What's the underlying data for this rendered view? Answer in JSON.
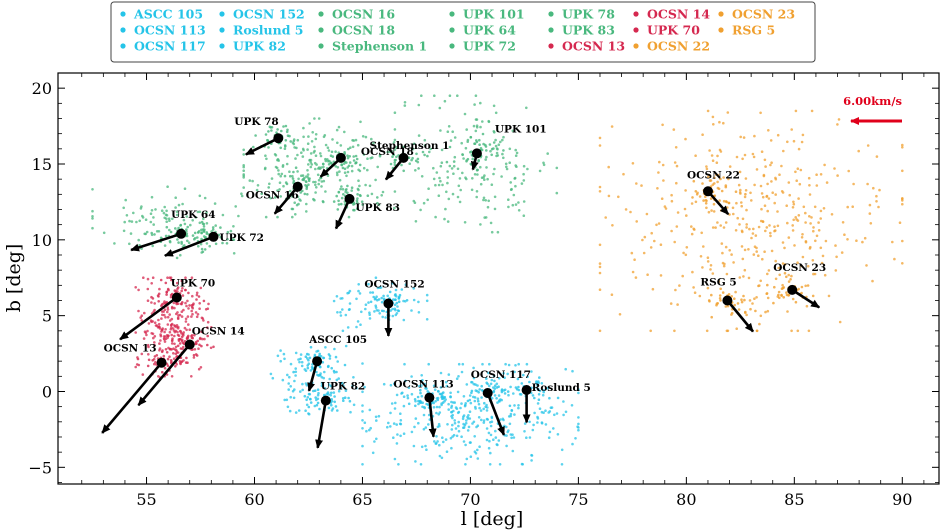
{
  "chart_data": {
    "type": "scatter",
    "xlabel": "l [deg]",
    "ylabel": "b [deg]",
    "xlim": [
      50.9,
      91.7
    ],
    "ylim": [
      -6.1,
      21.0
    ],
    "xticks": [
      "55",
      "60",
      "65",
      "70",
      "75",
      "80",
      "85",
      "90"
    ],
    "yticks": [
      "−5",
      "0",
      "5",
      "10",
      "15",
      "20"
    ],
    "xtick_values": [
      55,
      60,
      65,
      70,
      75,
      80,
      85,
      90
    ],
    "ytick_values": [
      -5,
      0,
      5,
      10,
      15,
      20
    ],
    "grid": false,
    "legend_position": "top-center",
    "scale_arrow_label": "6.00km/s",
    "scale_arrow_color": "#e0001b",
    "groups": [
      {
        "color": "#25c4e8",
        "clusters": [
          "ASCC 105",
          "OCSN 113",
          "OCSN 117",
          "OCSN 152",
          "Roslund 5",
          "UPK 82"
        ]
      },
      {
        "color": "#49b87e",
        "clusters": [
          "OCSN 16",
          "OCSN 18",
          "Stephenson 1",
          "UPK 101",
          "UPK 64",
          "UPK 72",
          "UPK 78",
          "UPK 83"
        ]
      },
      {
        "color": "#d5284f",
        "clusters": [
          "OCSN 13",
          "OCSN 14",
          "UPK 70"
        ]
      },
      {
        "color": "#f0a030",
        "clusters": [
          "OCSN 22",
          "OCSN 23",
          "RSG 5"
        ]
      }
    ],
    "legend": [
      {
        "name": "ASCC 105",
        "color": "#25c4e8"
      },
      {
        "name": "OCSN 113",
        "color": "#25c4e8"
      },
      {
        "name": "OCSN 117",
        "color": "#25c4e8"
      },
      {
        "name": "OCSN 152",
        "color": "#25c4e8"
      },
      {
        "name": "Roslund 5",
        "color": "#25c4e8"
      },
      {
        "name": "UPK 82",
        "color": "#25c4e8"
      },
      {
        "name": "OCSN 16",
        "color": "#49b87e"
      },
      {
        "name": "OCSN 18",
        "color": "#49b87e"
      },
      {
        "name": "Stephenson 1",
        "color": "#49b87e"
      },
      {
        "name": "UPK 101",
        "color": "#49b87e"
      },
      {
        "name": "UPK 64",
        "color": "#49b87e"
      },
      {
        "name": "UPK 72",
        "color": "#49b87e"
      },
      {
        "name": "UPK 78",
        "color": "#49b87e"
      },
      {
        "name": "UPK 83",
        "color": "#49b87e"
      },
      {
        "name": "OCSN 13",
        "color": "#d5284f"
      },
      {
        "name": "OCSN 14",
        "color": "#d5284f"
      },
      {
        "name": "UPK 70",
        "color": "#d5284f"
      },
      {
        "name": "OCSN 22",
        "color": "#f0a030"
      },
      {
        "name": "OCSN 23",
        "color": "#f0a030"
      },
      {
        "name": "RSG 5",
        "color": "#f0a030"
      }
    ],
    "clusters": [
      {
        "name": "ASCC 105",
        "l": 62.9,
        "b": 2.0,
        "vl": -0.6,
        "vb": -2.2,
        "color": "#25c4e8"
      },
      {
        "name": "UPK 82",
        "l": 63.3,
        "b": -0.6,
        "vl": -0.6,
        "vb": -3.5,
        "color": "#25c4e8"
      },
      {
        "name": "OCSN 152",
        "l": 66.2,
        "b": 5.8,
        "vl": 0.0,
        "vb": -2.4,
        "color": "#25c4e8"
      },
      {
        "name": "OCSN 113",
        "l": 68.1,
        "b": -0.4,
        "vl": 0.3,
        "vb": -2.9,
        "color": "#25c4e8"
      },
      {
        "name": "OCSN 117",
        "l": 70.8,
        "b": -0.1,
        "vl": 1.2,
        "vb": -3.1,
        "color": "#25c4e8"
      },
      {
        "name": "Roslund 5",
        "l": 72.6,
        "b": 0.1,
        "vl": 0.0,
        "vb": -2.4,
        "color": "#25c4e8"
      },
      {
        "name": "UPK 78",
        "l": 61.1,
        "b": 16.7,
        "vl": -2.4,
        "vb": -1.2,
        "color": "#49b87e"
      },
      {
        "name": "OCSN 18",
        "l": 64.0,
        "b": 15.4,
        "vl": -1.5,
        "vb": -1.4,
        "color": "#49b87e"
      },
      {
        "name": "OCSN 16",
        "l": 62.0,
        "b": 13.5,
        "vl": -1.7,
        "vb": -2.0,
        "color": "#49b87e"
      },
      {
        "name": "Stephenson 1",
        "l": 66.9,
        "b": 15.4,
        "vl": -1.3,
        "vb": -1.6,
        "color": "#49b87e"
      },
      {
        "name": "UPK 83",
        "l": 64.4,
        "b": 12.7,
        "vl": -1.0,
        "vb": -2.2,
        "color": "#49b87e"
      },
      {
        "name": "UPK 101",
        "l": 70.3,
        "b": 15.7,
        "vl": -0.3,
        "vb": -1.2,
        "color": "#49b87e"
      },
      {
        "name": "UPK 64",
        "l": 56.6,
        "b": 10.4,
        "vl": -3.7,
        "vb": -1.2,
        "color": "#49b87e"
      },
      {
        "name": "UPK 72",
        "l": 58.1,
        "b": 10.2,
        "vl": -3.6,
        "vb": -1.4,
        "color": "#49b87e"
      },
      {
        "name": "UPK 70",
        "l": 56.4,
        "b": 6.2,
        "vl": -4.2,
        "vb": -3.1,
        "color": "#d5284f"
      },
      {
        "name": "OCSN 14",
        "l": 57.0,
        "b": 3.1,
        "vl": -3.8,
        "vb": -4.5,
        "color": "#d5284f"
      },
      {
        "name": "OCSN 13",
        "l": 55.7,
        "b": 1.9,
        "vl": -4.4,
        "vb": -5.2,
        "color": "#d5284f"
      },
      {
        "name": "OCSN 22",
        "l": 81.0,
        "b": 13.2,
        "vl": 1.5,
        "vb": -1.7,
        "color": "#f0a030"
      },
      {
        "name": "RSG 5",
        "l": 81.9,
        "b": 6.0,
        "vl": 1.9,
        "vb": -2.3,
        "color": "#f0a030"
      },
      {
        "name": "OCSN 23",
        "l": 84.9,
        "b": 6.7,
        "vl": 2.0,
        "vb": -1.3,
        "color": "#f0a030"
      }
    ],
    "point_clouds": [
      {
        "color": "#49b87e",
        "l_range": [
          52.5,
          59.5
        ],
        "b_range": [
          8.8,
          13.5
        ],
        "count": 120
      },
      {
        "color": "#49b87e",
        "l_range": [
          59.5,
          66.5
        ],
        "b_range": [
          11.5,
          18.0
        ],
        "count": 220
      },
      {
        "color": "#49b87e",
        "l_range": [
          66.5,
          74.0
        ],
        "b_range": [
          10.5,
          19.5
        ],
        "count": 200
      },
      {
        "color": "#25c4e8",
        "l_range": [
          60.5,
          65.0
        ],
        "b_range": [
          -1.5,
          3.0
        ],
        "count": 110
      },
      {
        "color": "#25c4e8",
        "l_range": [
          63.5,
          68.0
        ],
        "b_range": [
          4.0,
          7.5
        ],
        "count": 80
      },
      {
        "color": "#25c4e8",
        "l_range": [
          65.0,
          75.0
        ],
        "b_range": [
          -4.8,
          1.8
        ],
        "count": 380
      },
      {
        "color": "#d5284f",
        "l_range": [
          54.5,
          58.0
        ],
        "b_range": [
          1.0,
          7.5
        ],
        "count": 260
      },
      {
        "color": "#f0a030",
        "l_range": [
          76.0,
          90.0
        ],
        "b_range": [
          4.0,
          18.5
        ],
        "count": 420
      }
    ]
  }
}
